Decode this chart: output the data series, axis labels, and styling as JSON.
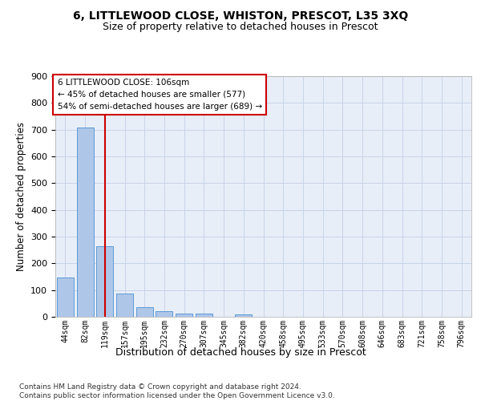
{
  "title1": "6, LITTLEWOOD CLOSE, WHISTON, PRESCOT, L35 3XQ",
  "title2": "Size of property relative to detached houses in Prescot",
  "xlabel": "Distribution of detached houses by size in Prescot",
  "ylabel": "Number of detached properties",
  "categories": [
    "44sqm",
    "82sqm",
    "119sqm",
    "157sqm",
    "195sqm",
    "232sqm",
    "270sqm",
    "307sqm",
    "345sqm",
    "382sqm",
    "420sqm",
    "458sqm",
    "495sqm",
    "533sqm",
    "570sqm",
    "608sqm",
    "646sqm",
    "683sqm",
    "721sqm",
    "758sqm",
    "796sqm"
  ],
  "bar_values": [
    148,
    708,
    265,
    86,
    35,
    22,
    12,
    12,
    0,
    10,
    0,
    0,
    0,
    0,
    0,
    0,
    0,
    0,
    0,
    0,
    0
  ],
  "bar_color": "#aec6e8",
  "bar_edge_color": "#5b9bd5",
  "grid_color": "#c8d4e8",
  "vline_x": 2.0,
  "vline_color": "#cc0000",
  "annotation_line1": "6 LITTLEWOOD CLOSE: 106sqm",
  "annotation_line2": "← 45% of detached houses are smaller (577)",
  "annotation_line3": "54% of semi-detached houses are larger (689) →",
  "ylim_max": 900,
  "yticks": [
    0,
    100,
    200,
    300,
    400,
    500,
    600,
    700,
    800,
    900
  ],
  "footer": "Contains HM Land Registry data © Crown copyright and database right 2024.\nContains public sector information licensed under the Open Government Licence v3.0.",
  "bg_color": "#e8eef8"
}
